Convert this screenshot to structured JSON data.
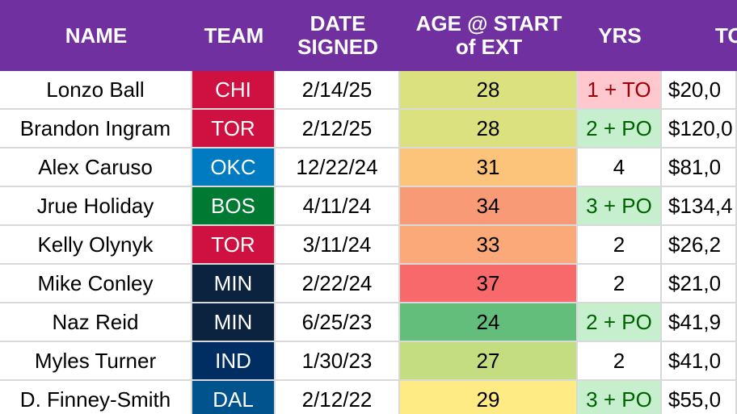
{
  "table": {
    "header": [
      "NAME",
      "TEAM",
      "DATE SIGNED",
      "AGE @ START of EXT",
      "YRS",
      "TO"
    ],
    "header_color": "#7030a0",
    "rows": [
      {
        "name": "Lonzo Ball",
        "team": "CHI",
        "team_color": "#ce1141",
        "date": "2/14/25",
        "age": 28,
        "age_color": "#dce17f",
        "yrs": "1 + TO",
        "yrs_fill": "#ffc7ce",
        "yrs_text": "#9c0006",
        "total": "$20,0"
      },
      {
        "name": "Brandon Ingram",
        "team": "TOR",
        "team_color": "#ce1141",
        "date": "2/12/25",
        "age": 28,
        "age_color": "#dce17f",
        "yrs": "2 + PO",
        "yrs_fill": "#c6efce",
        "yrs_text": "#006100",
        "total": "$120,0"
      },
      {
        "name": "Alex Caruso",
        "team": "OKC",
        "team_color": "#007ac1",
        "date": "12/22/24",
        "age": 31,
        "age_color": "#fcc47a",
        "yrs": "4",
        "total": "$81,0"
      },
      {
        "name": "Jrue Holiday",
        "team": "BOS",
        "team_color": "#007a33",
        "date": "4/11/24",
        "age": 34,
        "age_color": "#f99a76",
        "yrs": "3 + PO",
        "yrs_fill": "#c6efce",
        "yrs_text": "#006100",
        "total": "$134,4"
      },
      {
        "name": "Kelly Olynyk",
        "team": "TOR",
        "team_color": "#ce1141",
        "date": "3/11/24",
        "age": 33,
        "age_color": "#fba979",
        "yrs": "2",
        "total": "$26,2"
      },
      {
        "name": "Mike Conley",
        "team": "MIN",
        "team_color": "#0c2340",
        "date": "2/22/24",
        "age": 37,
        "age_color": "#f8696b",
        "yrs": "2",
        "total": "$21,0"
      },
      {
        "name": "Naz Reid",
        "team": "MIN",
        "team_color": "#0c2340",
        "date": "6/25/23",
        "age": 24,
        "age_color": "#63be7b",
        "yrs": "2 + PO",
        "yrs_fill": "#c6efce",
        "yrs_text": "#006100",
        "total": "$41,9"
      },
      {
        "name": "Myles Turner",
        "team": "IND",
        "team_color": "#002d62",
        "date": "1/30/23",
        "age": 27,
        "age_color": "#c4dd80",
        "yrs": "2",
        "total": "$41,0"
      },
      {
        "name": "D. Finney-Smith",
        "team": "DAL",
        "team_color": "#00538c",
        "date": "2/12/22",
        "age": 29,
        "age_color": "#ffeb84",
        "yrs": "3 + PO",
        "yrs_fill": "#c6efce",
        "yrs_text": "#006100",
        "total": "$55,0"
      }
    ]
  }
}
